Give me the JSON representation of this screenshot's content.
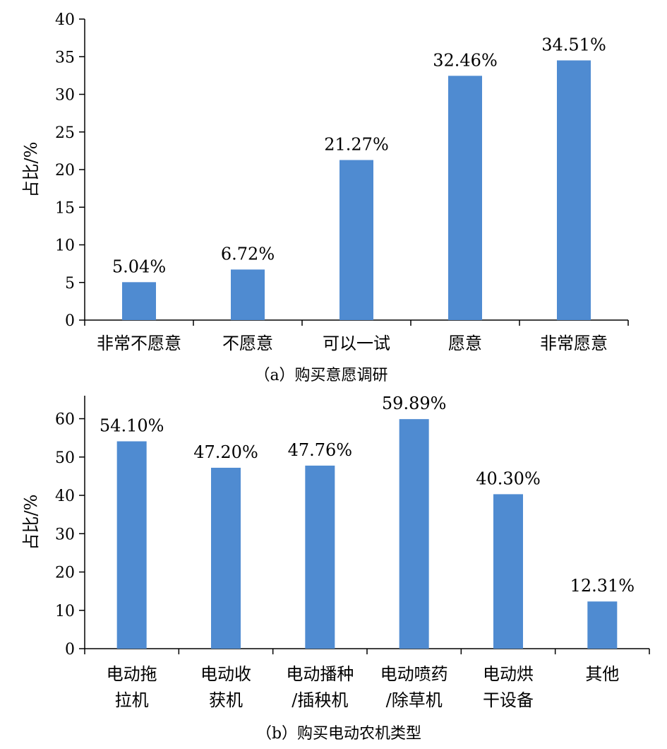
{
  "chart_data": [
    {
      "type": "bar",
      "caption": "（a）购买意愿调研",
      "ylabel": "占比/%",
      "ylim": [
        0,
        40
      ],
      "yticks": [
        0,
        5,
        10,
        15,
        20,
        25,
        30,
        35,
        40
      ],
      "categories": [
        [
          "非常不愿意"
        ],
        [
          "不愿意"
        ],
        [
          "可以一试"
        ],
        [
          "愿意"
        ],
        [
          "非常愿意"
        ]
      ],
      "values": [
        5.04,
        6.72,
        21.27,
        32.46,
        34.51
      ],
      "data_labels": [
        "5.04%",
        "6.72%",
        "21.27%",
        "32.46%",
        "34.51%"
      ],
      "color": "#4f8bd1"
    },
    {
      "type": "bar",
      "caption": "（b）购买电动农机类型",
      "ylabel": "占比/%",
      "ylim": [
        0,
        66
      ],
      "yticks": [
        0,
        10,
        20,
        30,
        40,
        50,
        60
      ],
      "categories": [
        [
          "电动拖",
          "拉机"
        ],
        [
          "电动收",
          "获机"
        ],
        [
          "电动播种",
          "/插秧机"
        ],
        [
          "电动喷药",
          "/除草机"
        ],
        [
          "电动烘",
          "干设备"
        ],
        [
          "其他"
        ]
      ],
      "values": [
        54.1,
        47.2,
        47.76,
        59.89,
        40.3,
        12.31
      ],
      "data_labels": [
        "54.10%",
        "47.20%",
        "47.76%",
        "59.89%",
        "40.30%",
        "12.31%"
      ],
      "color": "#4f8bd1"
    }
  ]
}
